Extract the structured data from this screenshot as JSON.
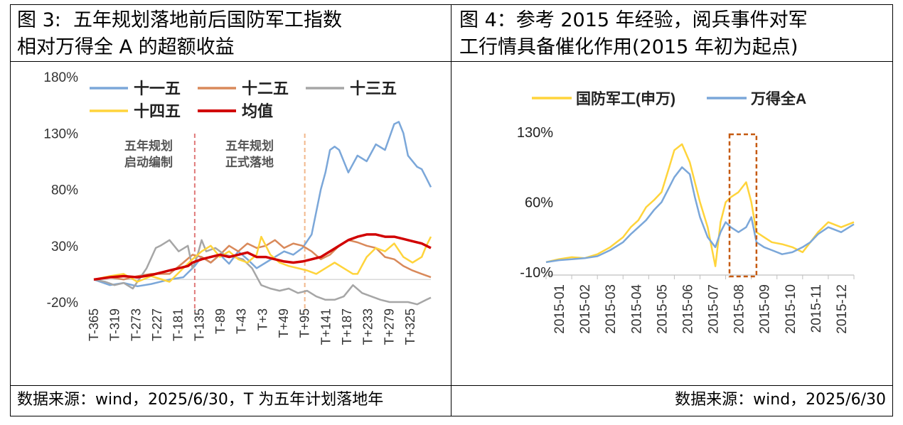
{
  "left_panel": {
    "title_line1": "图 3:  五年规划落地前后国防军工指数",
    "title_line2": "相对万得全 A 的超额收益",
    "source": "数据来源：wind，2025/6/30，T 为五年计划落地年",
    "annotation_1_line1": "五年规划",
    "annotation_1_line2": "启动编制",
    "annotation_2_line1": "五年规划",
    "annotation_2_line2": "正式落地"
  },
  "right_panel": {
    "title_line1": "图 4：参考 2015 年经验，阅兵事件对军",
    "title_line2": "工行情具备催化作用(2015 年初为起点)",
    "source": "数据来源：wind，2025/6/30"
  },
  "colors": {
    "blue": "#7BA7D9",
    "orange": "#D9895A",
    "gray": "#A6A6A6",
    "yellow": "#FFD43B",
    "red": "#D10000",
    "dash_red": "#E07A7A",
    "dash_orange": "#F2B88C",
    "box": "#C55A11"
  },
  "chart_data": [
    {
      "type": "line",
      "ylim": [
        -20,
        180
      ],
      "y_ticks": [
        "180%",
        "130%",
        "80%",
        "30%",
        "-20%"
      ],
      "y_tick_values": [
        180,
        130,
        80,
        30,
        -20
      ],
      "x_range": [
        -365,
        370
      ],
      "x_ticks": [
        "T-365",
        "T-319",
        "T-273",
        "T-227",
        "T-181",
        "T-135",
        "T-89",
        "T-43",
        "T+3",
        "T+49",
        "T+95",
        "T+141",
        "T+187",
        "T+233",
        "T+279",
        "T+325"
      ],
      "x_tick_values": [
        -365,
        -319,
        -273,
        -227,
        -181,
        -135,
        -89,
        -43,
        3,
        49,
        95,
        141,
        187,
        233,
        279,
        325
      ],
      "vlines": [
        -145,
        95
      ],
      "legend": [
        "十一五",
        "十二五",
        "十三五",
        "十四五",
        "均值"
      ],
      "legend_placement": "top",
      "baseline": 0,
      "series": [
        {
          "name": "十一五",
          "color": "#7BA7D9",
          "x": [
            -365,
            -330,
            -300,
            -270,
            -240,
            -200,
            -170,
            -145,
            -130,
            -110,
            -90,
            -70,
            -50,
            -30,
            -10,
            10,
            30,
            50,
            70,
            90,
            110,
            130,
            140,
            150,
            160,
            170,
            190,
            210,
            230,
            250,
            270,
            290,
            300,
            310,
            320,
            340,
            350,
            360,
            370
          ],
          "y": [
            0,
            -5,
            -3,
            -6,
            -4,
            0,
            2,
            12,
            20,
            15,
            22,
            14,
            25,
            18,
            10,
            15,
            20,
            25,
            22,
            28,
            40,
            80,
            95,
            115,
            118,
            115,
            95,
            110,
            105,
            120,
            115,
            138,
            140,
            130,
            110,
            100,
            98,
            90,
            82
          ]
        },
        {
          "name": "十二五",
          "color": "#D9895A",
          "x": [
            -365,
            -330,
            -300,
            -270,
            -240,
            -200,
            -170,
            -150,
            -130,
            -110,
            -90,
            -70,
            -50,
            -30,
            -10,
            10,
            30,
            50,
            70,
            90,
            110,
            130,
            150,
            170,
            190,
            210,
            230,
            250,
            270,
            290,
            310,
            330,
            350,
            370
          ],
          "y": [
            0,
            2,
            0,
            3,
            5,
            5,
            15,
            22,
            20,
            15,
            22,
            30,
            25,
            32,
            28,
            30,
            35,
            28,
            32,
            30,
            25,
            18,
            22,
            30,
            35,
            33,
            30,
            28,
            20,
            18,
            12,
            8,
            5,
            2
          ]
        },
        {
          "name": "十三五",
          "color": "#A6A6A6",
          "x": [
            -365,
            -340,
            -320,
            -300,
            -280,
            -250,
            -230,
            -220,
            -200,
            -180,
            -160,
            -150,
            -140,
            -130,
            -120,
            -100,
            -80,
            -60,
            -40,
            -20,
            0,
            20,
            40,
            60,
            80,
            100,
            120,
            140,
            160,
            180,
            200,
            220,
            240,
            260,
            280,
            300,
            320,
            340,
            360,
            370
          ],
          "y": [
            0,
            -2,
            -5,
            -3,
            -8,
            10,
            28,
            30,
            35,
            25,
            30,
            10,
            20,
            35,
            25,
            28,
            22,
            20,
            18,
            10,
            -5,
            -8,
            -10,
            -8,
            -12,
            -10,
            -15,
            -18,
            -18,
            -15,
            -5,
            -12,
            -15,
            -18,
            -20,
            -20,
            -20,
            -22,
            -18,
            -16
          ]
        },
        {
          "name": "十四五",
          "color": "#FFD43B",
          "x": [
            -365,
            -330,
            -300,
            -270,
            -240,
            -200,
            -170,
            -150,
            -130,
            -110,
            -90,
            -70,
            -50,
            -30,
            -10,
            0,
            20,
            40,
            60,
            80,
            100,
            120,
            140,
            160,
            180,
            200,
            210,
            230,
            250,
            270,
            290,
            310,
            330,
            350,
            360,
            370
          ],
          "y": [
            0,
            3,
            5,
            -2,
            3,
            -2,
            10,
            18,
            25,
            30,
            20,
            25,
            18,
            15,
            22,
            38,
            22,
            15,
            12,
            10,
            8,
            5,
            10,
            15,
            10,
            5,
            5,
            20,
            28,
            25,
            32,
            20,
            15,
            20,
            30,
            38
          ]
        },
        {
          "name": "均值",
          "color": "#D10000",
          "x": [
            -365,
            -330,
            -300,
            -270,
            -240,
            -200,
            -180,
            -160,
            -150,
            -130,
            -110,
            -90,
            -70,
            -50,
            -30,
            -10,
            10,
            30,
            50,
            70,
            90,
            110,
            130,
            150,
            170,
            190,
            210,
            230,
            250,
            270,
            290,
            310,
            330,
            350,
            370
          ],
          "y": [
            0,
            2,
            3,
            2,
            4,
            8,
            10,
            12,
            15,
            18,
            20,
            22,
            20,
            22,
            24,
            20,
            20,
            18,
            16,
            15,
            16,
            18,
            20,
            25,
            30,
            35,
            38,
            40,
            40,
            38,
            38,
            36,
            34,
            32,
            28
          ]
        }
      ]
    },
    {
      "type": "line",
      "ylim": [
        -10,
        130
      ],
      "y_ticks": [
        "130%",
        "60%",
        "-10%"
      ],
      "y_tick_values": [
        130,
        60,
        -10
      ],
      "x_range": [
        0,
        12
      ],
      "x_ticks": [
        "2015-01",
        "2015-02",
        "2015-03",
        "2015-04",
        "2015-05",
        "2015-06",
        "2015-07",
        "2015-08",
        "2015-09",
        "2015-10",
        "2015-11",
        "2015-12"
      ],
      "legend": [
        "国防军工(申万)",
        "万得全A"
      ],
      "legend_placement": "top",
      "highlight_box_x": [
        7.15,
        8.2
      ],
      "series": [
        {
          "name": "国防军工(申万)",
          "color": "#FFD43B",
          "x": [
            0,
            0.5,
            1,
            1.5,
            2,
            2.5,
            3,
            3.3,
            3.6,
            3.9,
            4.2,
            4.5,
            4.8,
            5.0,
            5.3,
            5.6,
            5.8,
            6.0,
            6.3,
            6.6,
            6.8,
            7.0,
            7.2,
            7.5,
            7.8,
            8.0,
            8.2,
            8.5,
            8.8,
            9.2,
            9.6,
            10.0,
            10.3,
            10.6,
            11.0,
            11.5,
            12.0
          ],
          "y": [
            0,
            3,
            5,
            4,
            8,
            15,
            25,
            35,
            42,
            55,
            62,
            70,
            95,
            112,
            118,
            100,
            80,
            60,
            35,
            -4,
            40,
            60,
            65,
            70,
            80,
            60,
            30,
            25,
            20,
            18,
            15,
            10,
            20,
            30,
            40,
            35,
            40
          ]
        },
        {
          "name": "万得全A",
          "color": "#7BA7D9",
          "x": [
            0,
            0.5,
            1,
            1.5,
            2,
            2.5,
            3,
            3.3,
            3.6,
            3.9,
            4.2,
            4.5,
            4.8,
            5.0,
            5.3,
            5.6,
            5.8,
            6.0,
            6.3,
            6.6,
            6.8,
            7.0,
            7.2,
            7.5,
            7.8,
            8.0,
            8.2,
            8.5,
            8.8,
            9.2,
            9.6,
            10.0,
            10.3,
            10.6,
            11.0,
            11.5,
            12.0
          ],
          "y": [
            0,
            2,
            3,
            4,
            6,
            12,
            20,
            28,
            35,
            42,
            52,
            60,
            75,
            85,
            95,
            88,
            65,
            45,
            25,
            15,
            30,
            40,
            35,
            30,
            35,
            45,
            20,
            15,
            12,
            8,
            10,
            15,
            20,
            28,
            35,
            30,
            38
          ]
        }
      ]
    }
  ]
}
